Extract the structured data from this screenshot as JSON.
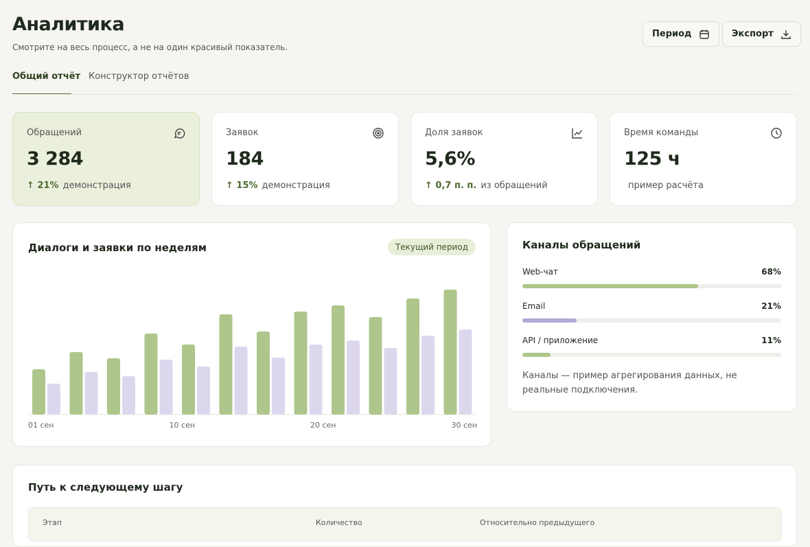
{
  "header": {
    "title": "Аналитика",
    "subtitle": "Смотрите на весь процесс, а не на один красивый показатель.",
    "buttons": [
      "Период",
      "Экспорт"
    ]
  },
  "tabs": [
    "Общий отчёт",
    "Конструктор отчётов"
  ],
  "kpis": [
    {
      "label": "Обращений",
      "value": "3 284",
      "delta": "↑ 21%",
      "note": "демонстрация"
    },
    {
      "label": "Заявок",
      "value": "184",
      "delta": "↑ 15%",
      "note": "демонстрация"
    },
    {
      "label": "Доля заявок",
      "value": "5,6%",
      "delta": "↑ 0,7 п. п.",
      "note": "из обращений"
    },
    {
      "label": "Время команды",
      "value": "125 ч",
      "note": "пример расчёта"
    }
  ],
  "chart_data": {
    "type": "bar",
    "title": "Диалоги и заявки по неделям",
    "badge": "Текущий период",
    "x_labels": [
      "01 сен",
      "10 сен",
      "20 сен",
      "30 сен"
    ],
    "series": [
      {
        "color": "#aec68b",
        "values": [
          66,
          91,
          82,
          118,
          102,
          146,
          121,
          150,
          159,
          142,
          169,
          182
        ]
      },
      {
        "color": "#ddd7ee",
        "values": [
          45,
          62,
          56,
          80,
          70,
          99,
          83,
          102,
          108,
          97,
          115,
          124
        ]
      }
    ]
  },
  "channels": {
    "title": "Каналы обращений",
    "items": [
      {
        "name": "Web-чат",
        "value": 68,
        "value_label": "68%",
        "color": "#aec68b"
      },
      {
        "name": "Email",
        "value": 21,
        "value_label": "21%",
        "color": "#b4a8d8"
      },
      {
        "name": "API / приложение",
        "value": 11,
        "value_label": "11%",
        "color": "#aec68b"
      }
    ],
    "note": "Каналы — пример агрегирования данных, не реальные подключения."
  },
  "funnel": {
    "title": "Путь к следующему шагу",
    "table": {
      "columns": [
        "Этап",
        "Количество",
        "Относительно предыдущего"
      ]
    }
  }
}
